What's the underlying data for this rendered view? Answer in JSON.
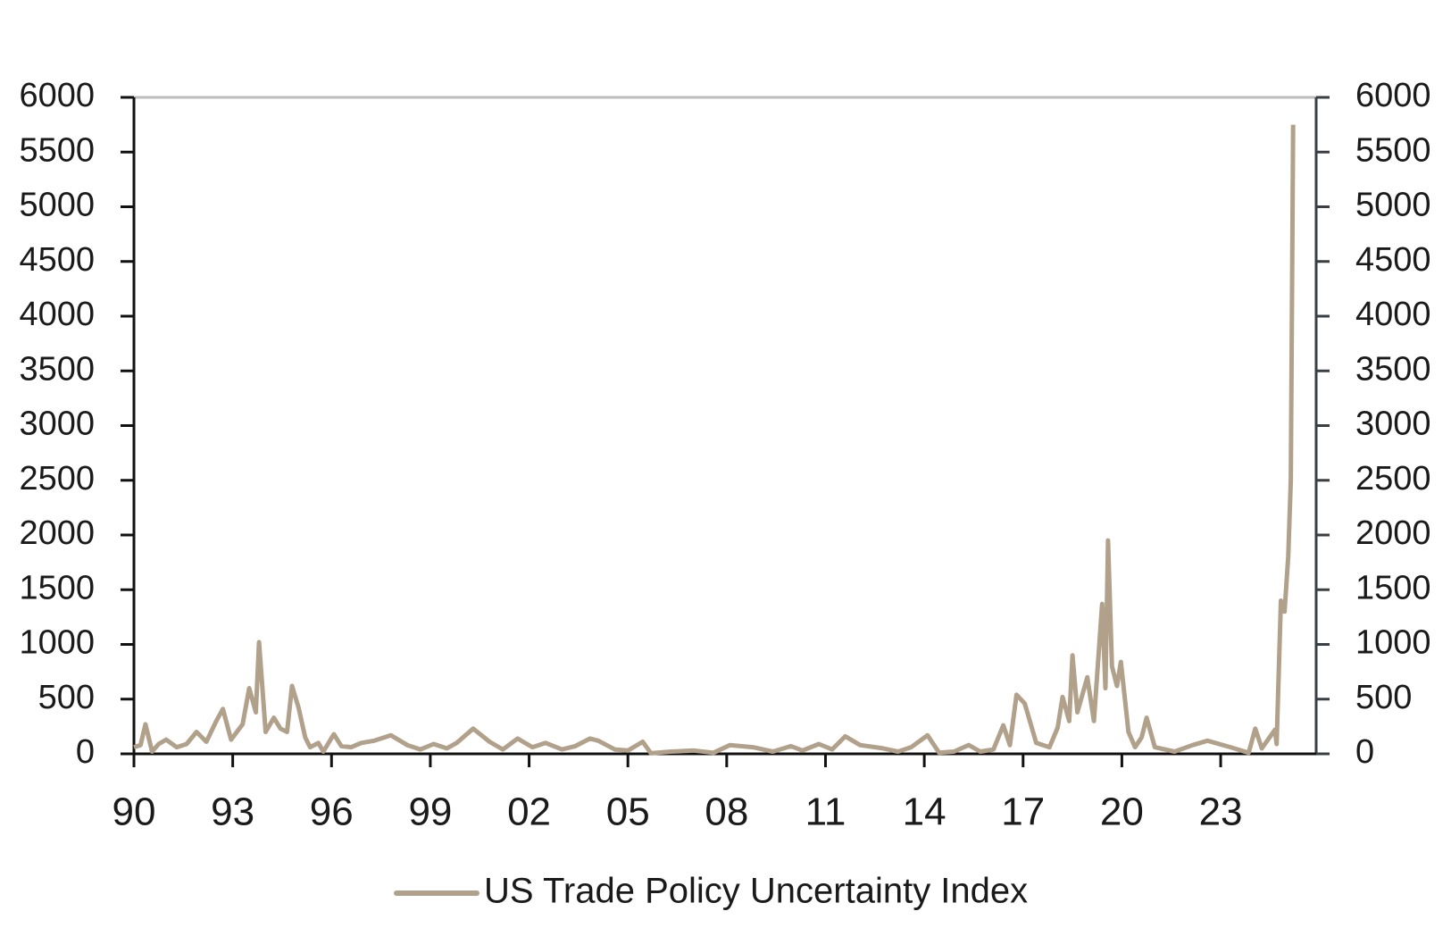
{
  "chart_data": {
    "type": "line",
    "x": [
      1990.0,
      1990.2,
      1990.35,
      1990.55,
      1990.75,
      1990.98,
      1991.3,
      1991.6,
      1991.9,
      1992.2,
      1992.5,
      1992.7,
      1992.95,
      1993.3,
      1993.5,
      1993.7,
      1993.8,
      1994.0,
      1994.25,
      1994.45,
      1994.65,
      1994.8,
      1995.0,
      1995.2,
      1995.35,
      1995.6,
      1995.75,
      1996.07,
      1996.3,
      1996.6,
      1996.9,
      1997.3,
      1997.8,
      1998.3,
      1998.7,
      1999.1,
      1999.5,
      1999.8,
      2000.3,
      2000.8,
      2001.2,
      2001.65,
      2002.1,
      2002.5,
      2003.0,
      2003.4,
      2003.85,
      2004.1,
      2004.6,
      2005.0,
      2005.45,
      2005.7,
      2006.3,
      2007.0,
      2007.6,
      2008.1,
      2008.8,
      2009.4,
      2009.95,
      2010.3,
      2010.8,
      2011.2,
      2011.6,
      2012.05,
      2012.75,
      2013.2,
      2013.6,
      2014.1,
      2014.45,
      2014.9,
      2015.35,
      2015.7,
      2016.1,
      2016.4,
      2016.6,
      2016.8,
      2017.05,
      2017.4,
      2017.8,
      2018.05,
      2018.2,
      2018.4,
      2018.5,
      2018.65,
      2018.95,
      2019.15,
      2019.4,
      2019.5,
      2019.58,
      2019.7,
      2019.85,
      2019.97,
      2020.2,
      2020.4,
      2020.6,
      2020.75,
      2021.0,
      2021.6,
      2022.15,
      2022.6,
      2023.3,
      2023.85,
      2024.05,
      2024.25,
      2024.65,
      2024.7,
      2024.83,
      2024.94,
      2025.05,
      2025.13,
      2025.2
    ],
    "series": [
      {
        "name": "US Trade Policy Uncertainty Index",
        "color": "#b1a08a",
        "values": [
          60,
          80,
          270,
          20,
          90,
          130,
          60,
          90,
          200,
          110,
          300,
          410,
          130,
          270,
          600,
          380,
          1020,
          200,
          330,
          230,
          200,
          620,
          420,
          150,
          60,
          100,
          20,
          180,
          70,
          60,
          100,
          120,
          170,
          80,
          40,
          90,
          50,
          100,
          230,
          110,
          40,
          140,
          60,
          100,
          40,
          70,
          140,
          120,
          40,
          30,
          110,
          5,
          20,
          30,
          10,
          80,
          60,
          20,
          70,
          30,
          90,
          40,
          160,
          80,
          50,
          20,
          60,
          170,
          10,
          20,
          80,
          20,
          40,
          260,
          80,
          540,
          460,
          100,
          60,
          240,
          520,
          300,
          900,
          380,
          700,
          300,
          1370,
          600,
          1950,
          800,
          620,
          840,
          200,
          60,
          150,
          330,
          60,
          20,
          80,
          120,
          60,
          10,
          230,
          50,
          220,
          90,
          1400,
          1300,
          1800,
          2500,
          5750
        ]
      }
    ],
    "xlim": [
      1990,
      2025.9
    ],
    "xticks": [
      {
        "value": 1990,
        "label": "90"
      },
      {
        "value": 1993,
        "label": "93"
      },
      {
        "value": 1996,
        "label": "96"
      },
      {
        "value": 1999,
        "label": "99"
      },
      {
        "value": 2002,
        "label": "02"
      },
      {
        "value": 2005,
        "label": "05"
      },
      {
        "value": 2008,
        "label": "08"
      },
      {
        "value": 2011,
        "label": "11"
      },
      {
        "value": 2014,
        "label": "14"
      },
      {
        "value": 2017,
        "label": "17"
      },
      {
        "value": 2020,
        "label": "20"
      },
      {
        "value": 2023,
        "label": "23"
      }
    ],
    "ylim": [
      0,
      6000
    ],
    "yticks": [
      0,
      500,
      1000,
      1500,
      2000,
      2500,
      3000,
      3500,
      4000,
      4500,
      5000,
      5500,
      6000
    ],
    "y2lim": [
      0,
      6000
    ],
    "y2ticks": [
      0,
      500,
      1000,
      1500,
      2000,
      2500,
      3000,
      3500,
      4000,
      4500,
      5000,
      5500,
      6000
    ],
    "legend": "bottom"
  }
}
